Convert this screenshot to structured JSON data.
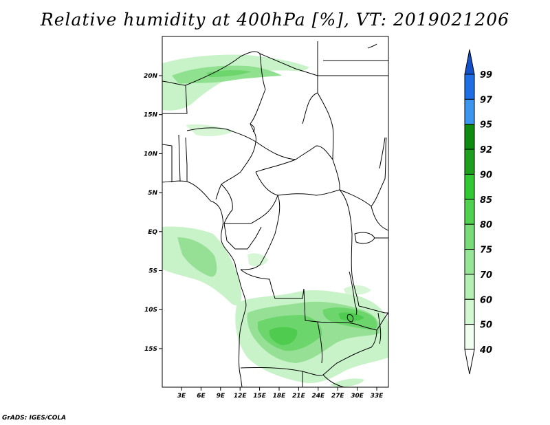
{
  "title": "Relative humidity at 400hPa [%], VT: 2019021206",
  "credit": "GrADS: IGES/COLA",
  "colors": {
    "frame": "#000000",
    "borders": "#000000",
    "levels": [
      "#f0fff0",
      "#d2f8d2",
      "#b4f0b4",
      "#96e696",
      "#78dc78",
      "#50d250",
      "#32c832",
      "#1ea01e",
      "#0f8c0f",
      "#3c96f0",
      "#1e6ee6",
      "#1450c8"
    ]
  },
  "map": {
    "lon_labels": [
      "3E",
      "6E",
      "9E",
      "12E",
      "15E",
      "18E",
      "21E",
      "24E",
      "27E",
      "30E",
      "33E"
    ],
    "lat_labels": [
      "20N",
      "15N",
      "10N",
      "5N",
      "EQ",
      "5S",
      "10S",
      "15S"
    ]
  },
  "colorbar": {
    "labels": [
      "40",
      "50",
      "60",
      "70",
      "75",
      "80",
      "85",
      "90",
      "92",
      "95",
      "97",
      "99"
    ]
  },
  "field": {
    "variable": "Relative humidity",
    "level": "400hPa",
    "units": "%",
    "valid_time": "2019021206"
  }
}
